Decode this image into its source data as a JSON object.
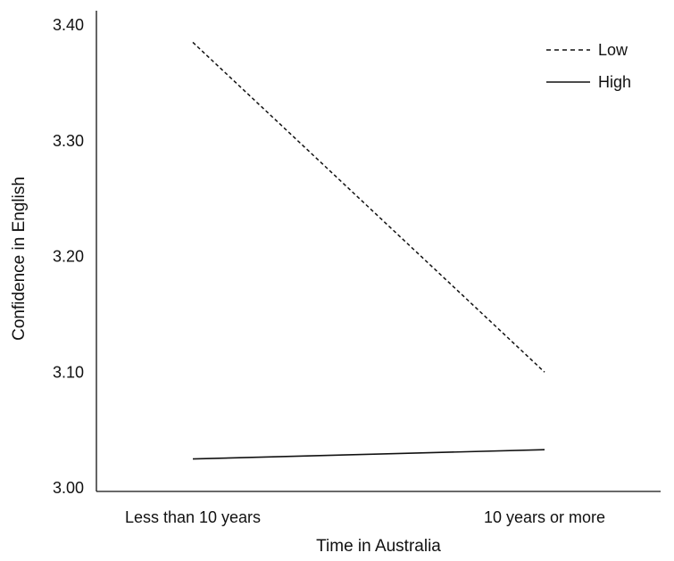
{
  "chart_data": {
    "type": "line",
    "title": "",
    "xlabel": "Time in Australia",
    "ylabel": "Confidence in English",
    "categories": [
      "Less than 10 years",
      "10 years or more"
    ],
    "ylim": [
      3.0,
      3.4
    ],
    "yticks": [
      3.0,
      3.1,
      3.2,
      3.3,
      3.4
    ],
    "ytick_labels": [
      "3.00",
      "3.10",
      "3.20",
      "3.30",
      "3.40"
    ],
    "grid": false,
    "legend_position": "top-right",
    "series": [
      {
        "name": "Low",
        "values": [
          3.385,
          3.1
        ],
        "style": "dashed",
        "color": "#111111"
      },
      {
        "name": "High",
        "values": [
          3.025,
          3.033
        ],
        "style": "solid",
        "color": "#111111"
      }
    ]
  }
}
